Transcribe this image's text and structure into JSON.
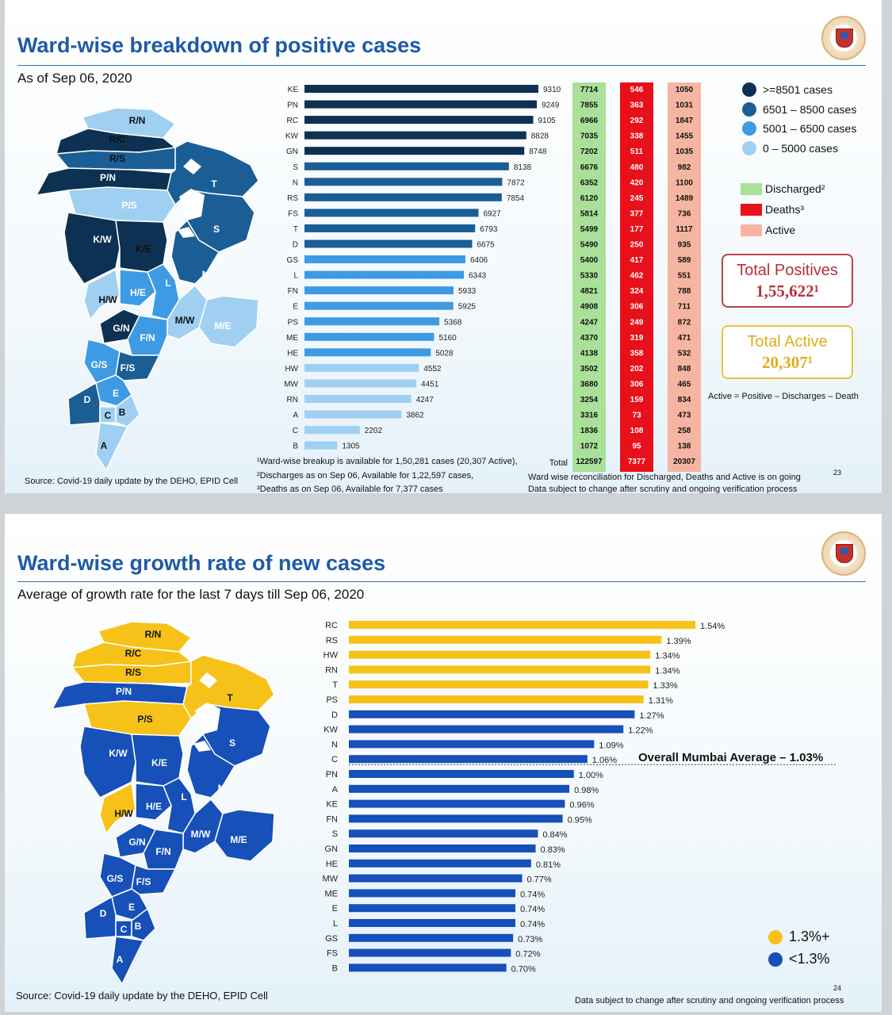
{
  "slide1": {
    "title": "Ward-wise breakdown of positive cases",
    "subtitle": "As of Sep 06, 2020",
    "source": "Source: Covid-19 daily update by the DEHO, EPID Cell",
    "page_number": "23",
    "footnotes": [
      "¹Ward-wise breakup is available for 1,50,281 cases (20,307 Active),",
      "²Discharges as on Sep 06, Available for 1,22,597  cases,",
      "³Deaths as on Sep 06, Available for 7,377 cases"
    ],
    "right_notes": [
      "Ward wise reconciliation for Discharged, Deaths and Active is on going",
      "Data subject to change after scrutiny and ongoing verification process"
    ],
    "formula": "Active = Positive – Discharges – Death",
    "total_positives": {
      "label": "Total Positives",
      "value": "1,55,622¹"
    },
    "total_active": {
      "label": "Total Active",
      "value": "20,307¹"
    },
    "legend": [
      {
        "label": ">=8501 cases",
        "color": "#0d3152"
      },
      {
        "label": "6501 – 8500 cases",
        "color": "#1b5e96"
      },
      {
        "label": "5001 – 6500 cases",
        "color": "#3d9be3"
      },
      {
        "label": "0 – 5000 cases",
        "color": "#9fd0f2"
      }
    ],
    "table_legend": [
      {
        "label": "Discharged²",
        "color": "#a9e09a"
      },
      {
        "label": "Deaths³",
        "color": "#e8101a"
      },
      {
        "label": "Active",
        "color": "#f5b5a2"
      }
    ],
    "map_labels": [
      "R/N",
      "R/C",
      "R/S",
      "P/N",
      "P/S",
      "T",
      "K/W",
      "K/E",
      "S",
      "N",
      "H/W",
      "H/E",
      "L",
      "G/N",
      "M/W",
      "M/E",
      "F/N",
      "G/S",
      "F/S",
      "E",
      "D",
      "C",
      "B",
      "A"
    ],
    "total_label": "Total",
    "totals": {
      "discharged": "122597",
      "deaths": "7377",
      "active": "20307"
    }
  },
  "chart_data": [
    {
      "type": "bar",
      "orientation": "horizontal",
      "categories": [
        "KE",
        "PN",
        "RC",
        "KW",
        "GN",
        "S",
        "N",
        "RS",
        "FS",
        "T",
        "D",
        "GS",
        "L",
        "FN",
        "E",
        "PS",
        "ME",
        "HE",
        "HW",
        "MW",
        "RN",
        "A",
        "C",
        "B"
      ],
      "series": [
        {
          "name": "Positive cases",
          "values": [
            9310,
            9249,
            9105,
            8828,
            8748,
            8138,
            7872,
            7854,
            6927,
            6793,
            6675,
            6406,
            6343,
            5933,
            5925,
            5368,
            5160,
            5028,
            4552,
            4451,
            4247,
            3862,
            2202,
            1305
          ]
        }
      ],
      "table": {
        "discharged": [
          7714,
          7855,
          6966,
          7035,
          7202,
          6676,
          6352,
          6120,
          5814,
          5499,
          5490,
          5400,
          5330,
          4821,
          4908,
          4247,
          4370,
          4138,
          3502,
          3680,
          3254,
          3316,
          1836,
          1072
        ],
        "deaths": [
          546,
          363,
          292,
          338,
          511,
          480,
          420,
          245,
          377,
          177,
          250,
          417,
          462,
          324,
          306,
          249,
          319,
          358,
          202,
          306,
          159,
          73,
          108,
          95
        ],
        "active": [
          1050,
          1031,
          1847,
          1455,
          1035,
          982,
          1100,
          1489,
          736,
          1117,
          935,
          589,
          551,
          788,
          711,
          872,
          471,
          532,
          848,
          465,
          834,
          473,
          258,
          138
        ]
      }
    },
    {
      "type": "bar",
      "orientation": "horizontal",
      "categories": [
        "RC",
        "RS",
        "HW",
        "RN",
        "T",
        "PS",
        "D",
        "KW",
        "N",
        "C",
        "PN",
        "A",
        "KE",
        "FN",
        "S",
        "GN",
        "HE",
        "MW",
        "ME",
        "E",
        "L",
        "GS",
        "FS",
        "B"
      ],
      "series": [
        {
          "name": "Average growth rate (%)",
          "values": [
            1.54,
            1.39,
            1.34,
            1.34,
            1.33,
            1.31,
            1.27,
            1.22,
            1.09,
            1.06,
            1.0,
            0.98,
            0.96,
            0.95,
            0.84,
            0.83,
            0.81,
            0.77,
            0.74,
            0.74,
            0.74,
            0.73,
            0.72,
            0.7
          ]
        }
      ],
      "average_line": {
        "label": "Overall Mumbai Average – 1.03%",
        "value": 1.03
      }
    }
  ],
  "slide2": {
    "title": "Ward-wise growth rate of new cases",
    "subtitle": "Average of growth rate for the last 7 days till Sep 06, 2020",
    "source": "Source: Covid-19 daily update by the DEHO, EPID Cell",
    "page_number": "24",
    "footer_note": "Data subject to change after scrutiny and ongoing verification process",
    "legend": [
      {
        "label": "1.3%+",
        "color": "#f6c21a"
      },
      {
        "label": "<1.3%",
        "color": "#1650b8"
      }
    ],
    "map_labels": [
      "R/N",
      "R/C",
      "R/S",
      "P/N",
      "P/S",
      "T",
      "K/W",
      "K/E",
      "S",
      "N",
      "H/W",
      "H/E",
      "L",
      "G/N",
      "M/W",
      "M/E",
      "F/N",
      "G/S",
      "F/S",
      "E",
      "D",
      "C",
      "B",
      "A"
    ]
  },
  "colors": {
    "title_blue": "#1f5aa6",
    "discharged": "#a9e09a",
    "deaths": "#e8101a",
    "active": "#f5b5a2",
    "high": "#f6c21a",
    "low": "#1650b8"
  }
}
